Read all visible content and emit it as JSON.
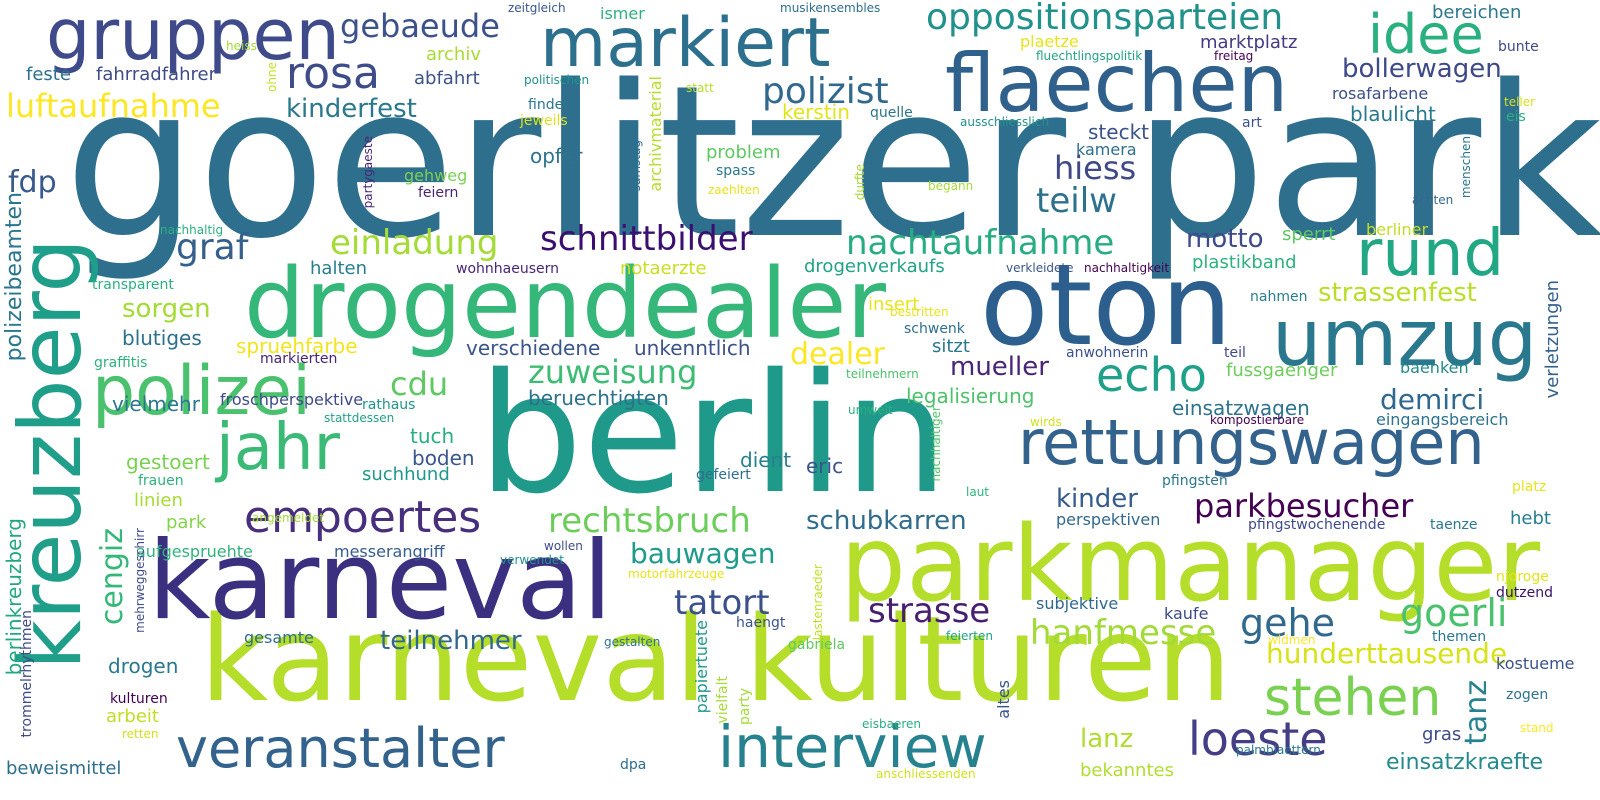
{
  "palette": [
    "#440154",
    "#46327e",
    "#365c8d",
    "#277f8e",
    "#1fa187",
    "#4ac16d",
    "#a0da39",
    "#fde725"
  ],
  "words": [
    {
      "text": "goerlitzer park",
      "color": "#2f6f8e"
    },
    {
      "text": "berlin",
      "color": "#1f9a8a"
    },
    {
      "text": "karneval kulturen",
      "color": "#b5de2b"
    },
    {
      "text": "parkmanager",
      "color": "#b5de2b"
    },
    {
      "text": "karneval",
      "color": "#3b2f80"
    },
    {
      "text": "drogendealer",
      "color": "#35b779"
    },
    {
      "text": "oton",
      "color": "#2c5e8e"
    },
    {
      "text": "markiert",
      "color": "#2d708e"
    },
    {
      "text": "flaechen",
      "color": "#30618d"
    },
    {
      "text": "gruppen",
      "color": "#3e4a89"
    },
    {
      "text": "kreuzberg",
      "color": "#1f9e89"
    },
    {
      "text": "polizei",
      "color": "#4ac16d"
    },
    {
      "text": "jahr",
      "color": "#3aba76"
    },
    {
      "text": "umzug",
      "color": "#2a788e"
    },
    {
      "text": "rettungswagen",
      "color": "#33638d"
    },
    {
      "text": "rund",
      "color": "#22a785"
    },
    {
      "text": "idee",
      "color": "#2ab07f"
    },
    {
      "text": "veranstalter",
      "color": "#33628d"
    },
    {
      "text": "interview",
      "color": "#26828e"
    },
    {
      "text": "stehen",
      "color": "#7ad151"
    },
    {
      "text": "empoertes",
      "color": "#472f7d"
    },
    {
      "text": "rosa",
      "color": "#3e4c8a"
    },
    {
      "text": "echo",
      "color": "#1fa088"
    },
    {
      "text": "loeste",
      "color": "#433e85"
    },
    {
      "text": "tatort",
      "color": "#3b518b"
    },
    {
      "text": "strasse",
      "color": "#481f70"
    },
    {
      "text": "hanfmesse",
      "color": "#a2da37"
    },
    {
      "text": "gehe",
      "color": "#31688e"
    },
    {
      "text": "goerli",
      "color": "#4ac16d"
    },
    {
      "text": "rechtsbruch",
      "color": "#6ccd5a"
    },
    {
      "text": "schnittbilder",
      "color": "#3b0f70"
    },
    {
      "text": "einladung",
      "color": "#a5db36"
    },
    {
      "text": "nachtaufnahme",
      "color": "#27ad81"
    },
    {
      "text": "polizist",
      "color": "#31688e"
    },
    {
      "text": "oppositionsparteien",
      "color": "#21918c"
    },
    {
      "text": "gebaeude",
      "color": "#3b528b"
    },
    {
      "text": "luftaufnahme",
      "color": "#fde725"
    },
    {
      "text": "kinderfest",
      "color": "#2a788e"
    },
    {
      "text": "hiess",
      "color": "#3f4889"
    },
    {
      "text": "teilw",
      "color": "#2c728e"
    },
    {
      "text": "parkbesucher",
      "color": "#440154"
    },
    {
      "text": "zuweisung",
      "color": "#3dbc74"
    },
    {
      "text": "cdu",
      "color": "#5ec962"
    },
    {
      "text": "dealer",
      "color": "#fde725"
    },
    {
      "text": "demirci",
      "color": "#30698e"
    },
    {
      "text": "cengiz",
      "color": "#35b779"
    },
    {
      "text": "bauwagen",
      "color": "#1e9b8a"
    },
    {
      "text": "schubkarren",
      "color": "#2f6c8e"
    },
    {
      "text": "teilnehmer",
      "color": "#31668e"
    },
    {
      "text": "kinder",
      "color": "#365c8d"
    },
    {
      "text": "mueller",
      "color": "#482576"
    },
    {
      "text": "motto",
      "color": "#3e4a89"
    },
    {
      "text": "graf",
      "color": "#355f8d"
    },
    {
      "text": "fdp",
      "color": "#38598c"
    },
    {
      "text": "polizeibeamten",
      "color": "#2a768e"
    },
    {
      "text": "tanz",
      "color": "#26828e"
    },
    {
      "text": "hunderttausende",
      "color": "#d8e219"
    },
    {
      "text": "strassenfest",
      "color": "#b8de29"
    },
    {
      "text": "bollerwagen",
      "color": "#3e4989"
    },
    {
      "text": "einsatzwagen",
      "color": "#2c738e"
    },
    {
      "text": "berlinkreuzberg",
      "color": "#22a785"
    },
    {
      "text": "lanz",
      "color": "#b0dd2f"
    },
    {
      "text": "einsatzkraefte",
      "color": "#238a8d"
    },
    {
      "text": "sorgen",
      "color": "#a5db36"
    },
    {
      "text": "blutiges",
      "color": "#2d708e"
    },
    {
      "text": "spruehfarbe",
      "color": "#f1e51d"
    },
    {
      "text": "verschiedene",
      "color": "#39558c"
    },
    {
      "text": "unkenntlich",
      "color": "#3b528b"
    },
    {
      "text": "beruechtigten",
      "color": "#2c728e"
    },
    {
      "text": "legalisierung",
      "color": "#4ec36b"
    },
    {
      "text": "fussgaenger",
      "color": "#6ccd5a"
    },
    {
      "text": "baenken",
      "color": "#238a8d"
    },
    {
      "text": "verletzungen",
      "color": "#34608d"
    },
    {
      "text": "eingangsbereich",
      "color": "#2c728e"
    },
    {
      "text": "blaulicht",
      "color": "#29798e"
    },
    {
      "text": "rosafarbene",
      "color": "#3d4e8a"
    },
    {
      "text": "marktplatz",
      "color": "#443a83"
    },
    {
      "text": "steckt",
      "color": "#3b528b"
    },
    {
      "text": "kamera",
      "color": "#2e6e8e"
    },
    {
      "text": "plastikband",
      "color": "#2db27d"
    },
    {
      "text": "sperrt",
      "color": "#5ec962"
    },
    {
      "text": "berliner",
      "color": "#c2df23"
    },
    {
      "text": "notaerzte",
      "color": "#c8e020"
    },
    {
      "text": "drogenverkaufs",
      "color": "#1fa287"
    },
    {
      "text": "halten",
      "color": "#277f8e"
    },
    {
      "text": "transparent",
      "color": "#2ab07f"
    },
    {
      "text": "graffitis",
      "color": "#2db27d"
    },
    {
      "text": "markierten",
      "color": "#482475"
    },
    {
      "text": "rathaus",
      "color": "#20938c"
    },
    {
      "text": "vielmehr",
      "color": "#2a768e"
    },
    {
      "text": "froschperspektive",
      "color": "#3e4a89"
    },
    {
      "text": "tuch",
      "color": "#29af7f"
    },
    {
      "text": "boden",
      "color": "#39568c"
    },
    {
      "text": "gestoert",
      "color": "#7ad151"
    },
    {
      "text": "suchhund",
      "color": "#1f988b"
    },
    {
      "text": "dient",
      "color": "#26818e"
    },
    {
      "text": "eric",
      "color": "#3b528b"
    },
    {
      "text": "gefeiert",
      "color": "#2e6e8e"
    },
    {
      "text": "frauen",
      "color": "#2db27d"
    },
    {
      "text": "linien",
      "color": "#a8db34"
    },
    {
      "text": "park",
      "color": "#84d44b"
    },
    {
      "text": "aufgespruehte",
      "color": "#2fb47c"
    },
    {
      "text": "messerangriff",
      "color": "#365c8d"
    },
    {
      "text": "verwendet",
      "color": "#20928c"
    },
    {
      "text": "wollen",
      "color": "#3e4a89"
    },
    {
      "text": "motorfahrzeuge",
      "color": "#e7e419"
    },
    {
      "text": "gesamte",
      "color": "#2e6e8e"
    },
    {
      "text": "drogen",
      "color": "#2a788e"
    },
    {
      "text": "kulturen",
      "color": "#440154"
    },
    {
      "text": "arbeit",
      "color": "#c0df25"
    },
    {
      "text": "retten",
      "color": "#d2e21b"
    },
    {
      "text": "beweismittel",
      "color": "#2e6e8e"
    },
    {
      "text": "trommelrhythmen",
      "color": "#3e4a89"
    },
    {
      "text": "mehrweggeschirr",
      "color": "#3e4a89"
    },
    {
      "text": "papiertuete",
      "color": "#1f988b"
    },
    {
      "text": "vielfalt",
      "color": "#a8db34"
    },
    {
      "text": "party",
      "color": "#a5db36"
    },
    {
      "text": "haengt",
      "color": "#3b528b"
    },
    {
      "text": "gabriela",
      "color": "#5ec962"
    },
    {
      "text": "lastenraeder",
      "color": "#c2df23"
    },
    {
      "text": "gestalten",
      "color": "#2c728e"
    },
    {
      "text": "feierten",
      "color": "#1fa287"
    },
    {
      "text": "eisbaeren",
      "color": "#28ae80"
    },
    {
      "text": "anschliessenden",
      "color": "#d2e21b"
    },
    {
      "text": "dpa",
      "color": "#2e6e8e"
    },
    {
      "text": "bekanntes",
      "color": "#b0dd2f"
    },
    {
      "text": "altes",
      "color": "#39568c"
    },
    {
      "text": "palmblaettern",
      "color": "#29798e"
    },
    {
      "text": "gras",
      "color": "#3e4a89"
    },
    {
      "text": "kostueme",
      "color": "#3b528b"
    },
    {
      "text": "zogen",
      "color": "#2c738e"
    },
    {
      "text": "stand",
      "color": "#fde725"
    },
    {
      "text": "njoroge",
      "color": "#e2e418"
    },
    {
      "text": "dutzend",
      "color": "#3b0f70"
    },
    {
      "text": "themen",
      "color": "#2a768e"
    },
    {
      "text": "widmen",
      "color": "#fde725"
    },
    {
      "text": "subjektive",
      "color": "#30698e"
    },
    {
      "text": "kaufe",
      "color": "#3e4a89"
    },
    {
      "text": "perspektiven",
      "color": "#31688e"
    },
    {
      "text": "pfingsten",
      "color": "#2a788e"
    },
    {
      "text": "pfingstwochenende",
      "color": "#3e4a89"
    },
    {
      "text": "taenze",
      "color": "#2a788e"
    },
    {
      "text": "hebt",
      "color": "#277f8e"
    },
    {
      "text": "platz",
      "color": "#e7e419"
    },
    {
      "text": "laut",
      "color": "#2db27d"
    },
    {
      "text": "nachhaltiger",
      "color": "#52c569"
    },
    {
      "text": "kompostierbare",
      "color": "#440154"
    },
    {
      "text": "wirds",
      "color": "#d2e21b"
    },
    {
      "text": "umwelt",
      "color": "#2ab07f"
    },
    {
      "text": "teilnehmern",
      "color": "#4ac16d"
    },
    {
      "text": "anwohnerin",
      "color": "#3b528b"
    },
    {
      "text": "teil",
      "color": "#3e4a89"
    },
    {
      "text": "schwenk",
      "color": "#2e6e8e"
    },
    {
      "text": "bestritten",
      "color": "#e7e419"
    },
    {
      "text": "insert",
      "color": "#e7e419"
    },
    {
      "text": "sitzt",
      "color": "#2a768e"
    },
    {
      "text": "stattdessen",
      "color": "#1fa287"
    },
    {
      "text": "angemeldet",
      "color": "#a5db36"
    },
    {
      "text": "verkleidete",
      "color": "#39568c"
    },
    {
      "text": "nachhaltigkeit",
      "color": "#440154"
    },
    {
      "text": "nahmen",
      "color": "#277f8e"
    },
    {
      "text": "wohnhaeusern",
      "color": "#482576"
    },
    {
      "text": "problem",
      "color": "#5ec962"
    },
    {
      "text": "spass",
      "color": "#2a788e"
    },
    {
      "text": "zaehlten",
      "color": "#e7e419"
    },
    {
      "text": "begann",
      "color": "#a8db34"
    },
    {
      "text": "durfte",
      "color": "#a8db34"
    },
    {
      "text": "kerstin",
      "color": "#e2e418"
    },
    {
      "text": "quelle",
      "color": "#2a768e"
    },
    {
      "text": "opfer",
      "color": "#2c728e"
    },
    {
      "text": "gehweg",
      "color": "#7ad151"
    },
    {
      "text": "feiern",
      "color": "#482475"
    },
    {
      "text": "samstag",
      "color": "#2e6e8e"
    },
    {
      "text": "archivmaterial",
      "color": "#b5de2b"
    },
    {
      "text": "findet",
      "color": "#2a768e"
    },
    {
      "text": "jeweils",
      "color": "#d8e219"
    },
    {
      "text": "politischen",
      "color": "#20928c"
    },
    {
      "text": "statt",
      "color": "#b5de2b"
    },
    {
      "text": "ausschliesslich",
      "color": "#20928c"
    },
    {
      "text": "art",
      "color": "#3b528b"
    },
    {
      "text": "menschen",
      "color": "#2a768e"
    },
    {
      "text": "achten",
      "color": "#31688e"
    },
    {
      "text": "eis",
      "color": "#2ab07f"
    },
    {
      "text": "teller",
      "color": "#d8e219"
    },
    {
      "text": "bunte",
      "color": "#3e4a89"
    },
    {
      "text": "bereichen",
      "color": "#2a788e"
    },
    {
      "text": "freitag",
      "color": "#440154"
    },
    {
      "text": "fluechtlingspolitik",
      "color": "#1fa287"
    },
    {
      "text": "plaetze",
      "color": "#e7e419"
    },
    {
      "text": "musikensembles",
      "color": "#2e6e8e"
    },
    {
      "text": "zeitgleich",
      "color": "#39568c"
    },
    {
      "text": "ismer",
      "color": "#2db27d"
    },
    {
      "text": "archiv",
      "color": "#a8db34"
    },
    {
      "text": "abfahrt",
      "color": "#3b528b"
    },
    {
      "text": "heiss",
      "color": "#a5db36"
    },
    {
      "text": "ohne",
      "color": "#c2df23"
    },
    {
      "text": "feste",
      "color": "#2c728e"
    },
    {
      "text": "fahrradfahrer",
      "color": "#3e4a89"
    },
    {
      "text": "nachhaltig",
      "color": "#2ab07f"
    },
    {
      "text": "partygaeste",
      "color": "#482576"
    }
  ]
}
